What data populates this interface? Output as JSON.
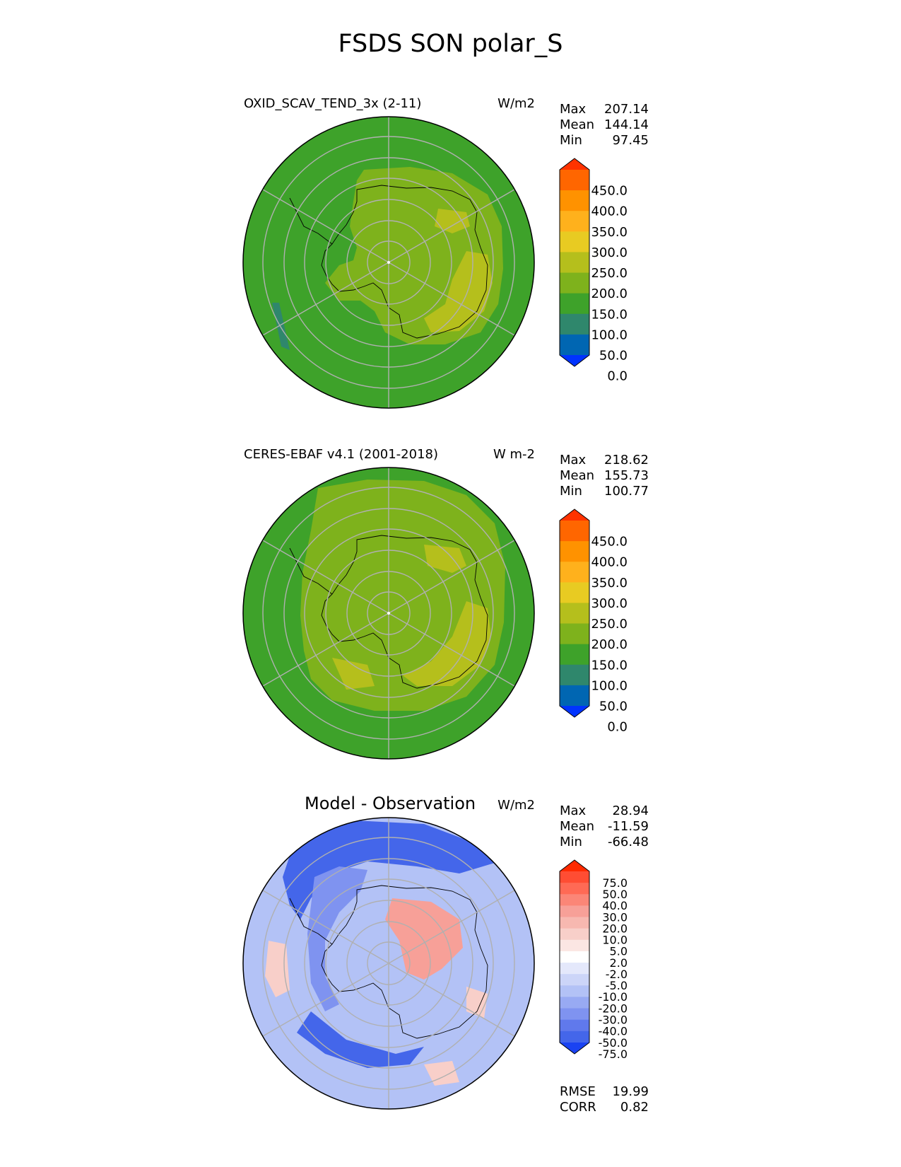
{
  "title": "FSDS SON polar_S",
  "panels": [
    {
      "left_title": "OXID_SCAV_TEND_3x (2-11)",
      "right_title": "W/m2",
      "stats": [
        [
          "Max",
          "207.14"
        ],
        [
          "Mean",
          "144.14"
        ],
        [
          "Min",
          "97.45"
        ]
      ],
      "colorbar": {
        "labels": [
          "450.0",
          "400.0",
          "350.0",
          "300.0",
          "250.0",
          "200.0",
          "150.0",
          "100.0",
          "50.0",
          "0.0"
        ],
        "colors": [
          "#ff3300",
          "#ff6600",
          "#ff9200",
          "#ffb11c",
          "#e8cb22",
          "#b5bf1c",
          "#7eb21c",
          "#3ea22a",
          "#2f876c",
          "#0066b2",
          "#0033ff"
        ]
      }
    },
    {
      "left_title": "CERES-EBAF v4.1 (2001-2018)",
      "right_title": "W m-2",
      "stats": [
        [
          "Max",
          "218.62"
        ],
        [
          "Mean",
          "155.73"
        ],
        [
          "Min",
          "100.77"
        ]
      ],
      "colorbar": {
        "labels": [
          "450.0",
          "400.0",
          "350.0",
          "300.0",
          "250.0",
          "200.0",
          "150.0",
          "100.0",
          "50.0",
          "0.0"
        ],
        "colors": [
          "#ff3300",
          "#ff6600",
          "#ff9200",
          "#ffb11c",
          "#e8cb22",
          "#b5bf1c",
          "#7eb21c",
          "#3ea22a",
          "#2f876c",
          "#0066b2",
          "#0033ff"
        ]
      }
    },
    {
      "center_title": "Model - Observation",
      "right_title": "W/m2",
      "stats": [
        [
          "Max",
          "28.94"
        ],
        [
          "Mean",
          "-11.59"
        ],
        [
          "Min",
          "-66.48"
        ]
      ],
      "extra_stats": [
        [
          "RMSE",
          "19.99"
        ],
        [
          "CORR",
          "0.82"
        ]
      ],
      "colorbar": {
        "labels": [
          "75.0",
          "50.0",
          "40.0",
          "30.0",
          "20.0",
          "10.0",
          "5.0",
          "2.0",
          "-2.0",
          "-5.0",
          "-10.0",
          "-20.0",
          "-30.0",
          "-40.0",
          "-50.0",
          "-75.0"
        ],
        "colors": [
          "#ff2a00",
          "#ff4d33",
          "#ff6a55",
          "#fb8677",
          "#f7a098",
          "#f7b8b0",
          "#f8cfc9",
          "#fbe6e3",
          "#ffffff",
          "#e4e8fb",
          "#ccd5f8",
          "#b3c2f6",
          "#98aaf3",
          "#7f93f0",
          "#6079ec",
          "#4466ea",
          "#1a43f2"
        ]
      }
    }
  ],
  "chart_data": [
    {
      "type": "heatmap",
      "projection": "south-polar-stereographic",
      "title": "OXID_SCAV_TEND_3x (2-11)",
      "units": "W/m2",
      "stats": {
        "max": 207.14,
        "mean": 144.14,
        "min": 97.45
      },
      "levels": [
        0,
        50,
        100,
        150,
        200,
        250,
        300,
        350,
        400,
        450
      ],
      "colorbar_extend": "both"
    },
    {
      "type": "heatmap",
      "projection": "south-polar-stereographic",
      "title": "CERES-EBAF v4.1 (2001-2018)",
      "units": "W m-2",
      "stats": {
        "max": 218.62,
        "mean": 155.73,
        "min": 100.77
      },
      "levels": [
        0,
        50,
        100,
        150,
        200,
        250,
        300,
        350,
        400,
        450
      ],
      "colorbar_extend": "both"
    },
    {
      "type": "heatmap",
      "projection": "south-polar-stereographic",
      "title": "Model - Observation",
      "units": "W/m2",
      "stats": {
        "max": 28.94,
        "mean": -11.59,
        "min": -66.48,
        "rmse": 19.99,
        "corr": 0.82
      },
      "levels": [
        -75,
        -50,
        -40,
        -30,
        -20,
        -10,
        -5,
        -2,
        2,
        5,
        10,
        20,
        30,
        40,
        50,
        75
      ],
      "colorbar_extend": "both"
    }
  ]
}
